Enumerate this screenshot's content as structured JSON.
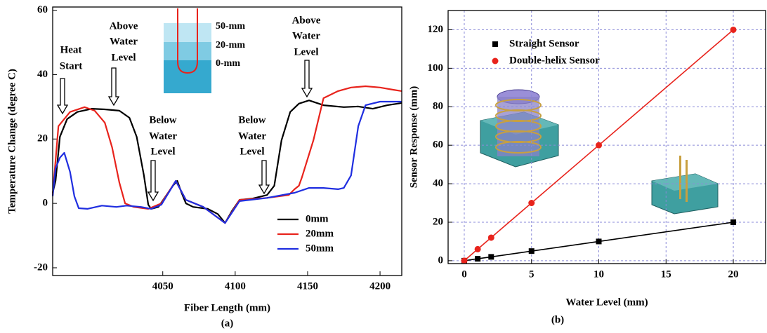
{
  "chart_data": [
    {
      "type": "line",
      "xlabel": "Fiber Length (mm)",
      "ylabel": "Temperature Change (degree C)",
      "caption": "(a)",
      "xlim": [
        3974,
        4215
      ],
      "ylim": [
        -22.4,
        61
      ],
      "xticks": [
        4050,
        4100,
        4150,
        4200
      ],
      "yticks": [
        -20,
        0,
        20,
        40,
        60
      ],
      "grid": false,
      "legend_position": "lower right",
      "series": [
        {
          "name": "0mm",
          "color": "#000000",
          "x": [
            3974,
            3976,
            3979,
            3984,
            3991,
            4001,
            4010,
            4020,
            4027,
            4032,
            4037,
            4040,
            4042,
            4047,
            4052,
            4057,
            4060,
            4063,
            4066,
            4071,
            4081,
            4088,
            4093,
            4098,
            4103,
            4112,
            4122,
            4127,
            4132,
            4138,
            4144,
            4151,
            4161,
            4175,
            4185,
            4195,
            4205,
            4215
          ],
          "values": [
            3.3,
            7,
            20.7,
            26.2,
            28.4,
            29.4,
            29.2,
            28.8,
            26.6,
            20.7,
            8.7,
            -0.4,
            -1.7,
            -1.1,
            2.2,
            5.5,
            7,
            3.3,
            0,
            -1.1,
            -1.7,
            -3.3,
            -6.1,
            -2.2,
            1.1,
            1.5,
            2.6,
            5.5,
            19.6,
            28.4,
            31,
            32,
            30.5,
            29.9,
            30.1,
            29.4,
            30.5,
            31.2
          ]
        },
        {
          "name": "20mm",
          "color": "#e8231c",
          "x": [
            3974,
            3978,
            3986,
            3996,
            4003,
            4010,
            4015,
            4020,
            4024,
            4030,
            4040,
            4049,
            4059,
            4066,
            4078,
            4093,
            4103,
            4122,
            4137,
            4141,
            4144,
            4146,
            4154,
            4161,
            4171,
            4180,
            4190,
            4200,
            4209,
            4215
          ],
          "values": [
            2.6,
            24,
            28.4,
            29.9,
            28.8,
            25.1,
            17.4,
            6.5,
            0,
            -1.1,
            -1.7,
            0,
            7,
            1.1,
            -1.1,
            -6.1,
            1.1,
            1.7,
            2.6,
            4.4,
            5.5,
            8,
            19.6,
            32.7,
            34.9,
            36,
            36.4,
            36,
            35.3,
            34.9
          ]
        },
        {
          "name": "50mm",
          "color": "#1f2ee0",
          "x": [
            3974,
            3976,
            3979,
            3982,
            3986,
            3989,
            3992,
            3998,
            4008,
            4018,
            4025,
            4035,
            4042,
            4049,
            4059,
            4066,
            4078,
            4093,
            4103,
            4122,
            4141,
            4151,
            4161,
            4171,
            4175,
            4180,
            4185,
            4190,
            4200,
            4215
          ],
          "values": [
            2.2,
            10.9,
            14.2,
            15.7,
            9.8,
            2.2,
            -1.5,
            -1.7,
            -0.7,
            -1.1,
            -0.7,
            -1.1,
            -1.7,
            -0.4,
            7,
            1.1,
            -1.1,
            -6.1,
            0.7,
            1.7,
            3.3,
            4.8,
            4.8,
            4.4,
            4.8,
            8.7,
            24,
            30.5,
            31.6,
            31.6
          ]
        }
      ],
      "annotations": [
        {
          "lines": [
            "Heat",
            "Start"
          ]
        },
        {
          "lines": [
            "Above",
            "Water",
            "Level"
          ]
        },
        {
          "lines": [
            "Below",
            "Water",
            "Level"
          ]
        },
        {
          "lines": [
            "Below",
            "Water",
            "Level"
          ]
        },
        {
          "lines": [
            "Above",
            "Water",
            "Level"
          ]
        }
      ],
      "inset_labels": [
        "50-mm",
        "20-mm",
        "0-mm"
      ]
    },
    {
      "type": "line",
      "xlabel": "Water Level (mm)",
      "ylabel": "Sensor Response (mm)",
      "caption": "(b)",
      "xlim": [
        -1.2,
        22.4
      ],
      "ylim": [
        -1.5,
        130
      ],
      "xticks": [
        0,
        5,
        10,
        15,
        20
      ],
      "yticks": [
        0,
        20,
        40,
        60,
        80,
        100,
        120
      ],
      "grid": true,
      "legend_position": "upper left",
      "series": [
        {
          "name": "Straight Sensor",
          "color": "#000000",
          "marker": "square",
          "x": [
            0,
            1,
            2,
            5,
            10,
            20
          ],
          "values": [
            0,
            1,
            2,
            5,
            10,
            20
          ]
        },
        {
          "name": "Double-helix Sensor",
          "color": "#e8231c",
          "marker": "circle",
          "x": [
            0,
            1,
            2,
            5,
            10,
            20
          ],
          "values": [
            0,
            6,
            12,
            30,
            60,
            120
          ]
        }
      ]
    }
  ]
}
